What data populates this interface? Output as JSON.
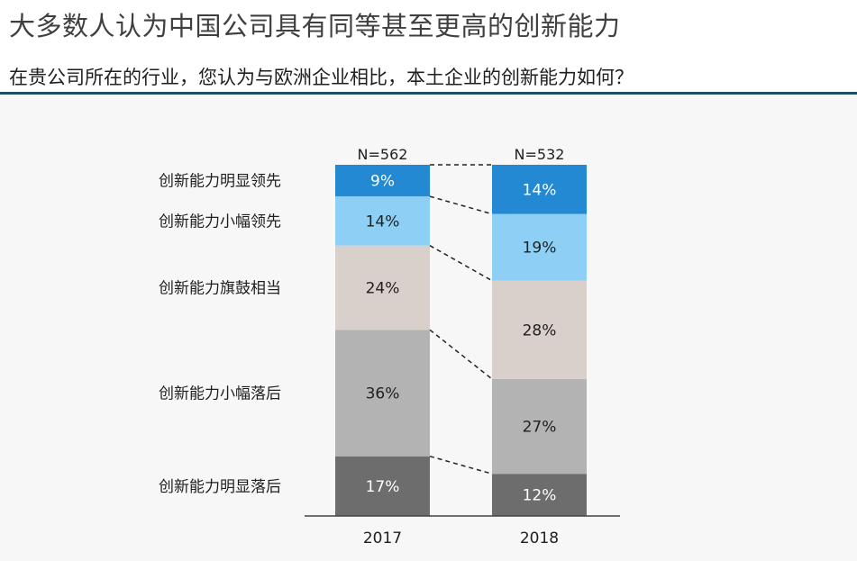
{
  "title": "大多数人认为中国公司具有同等甚至更高的创新能力",
  "subtitle": "在贵公司所在的行业，您认为与欧洲企业相比，本土企业的创新能力如何？",
  "chart_data": {
    "type": "bar",
    "stacked": true,
    "normalized": "100%",
    "categories": [
      "2017",
      "2018"
    ],
    "sample_sizes": [
      "N=562",
      "N=532"
    ],
    "series": [
      {
        "name": "创新能力明显落后",
        "values": [
          17,
          12
        ],
        "color": "#6d6d6d",
        "text_color": "#ffffff"
      },
      {
        "name": "创新能力小幅落后",
        "values": [
          36,
          27
        ],
        "color": "#b3b3b3",
        "text_color": "#1f1f1f"
      },
      {
        "name": "创新能力旗鼓相当",
        "values": [
          24,
          28
        ],
        "color": "#d9d0cb",
        "text_color": "#1f1f1f"
      },
      {
        "name": "创新能力小幅领先",
        "values": [
          14,
          19
        ],
        "color": "#8ed0f5",
        "text_color": "#1f1f1f"
      },
      {
        "name": "创新能力明显领先",
        "values": [
          9,
          14
        ],
        "color": "#2389d3",
        "text_color": "#ffffff"
      }
    ],
    "value_suffix": "%",
    "legend": "left, aligned with 2017 segments",
    "connectors": "dashed lines linking segment boundaries between the two bars"
  }
}
